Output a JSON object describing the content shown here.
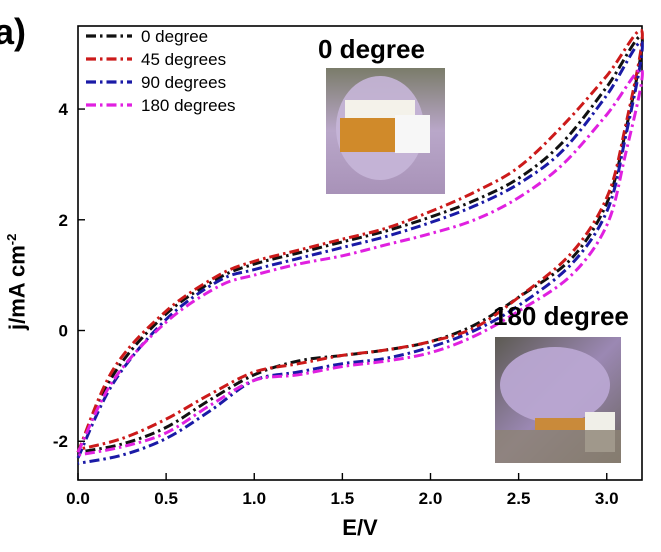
{
  "figure": {
    "panel_letter": "a)",
    "photo_top_caption": "0 degree",
    "photo_bottom_caption": "180 degree"
  },
  "chart_data": {
    "type": "line",
    "xlabel": "E/V",
    "ylabel_main": "j/mA cm",
    "ylabel_sup": "-2",
    "xlim": [
      0.0,
      3.2
    ],
    "ylim": [
      -2.7,
      5.5
    ],
    "xticks": [
      "0.0",
      "0.5",
      "1.0",
      "1.5",
      "2.0",
      "2.5",
      "3.0"
    ],
    "xtick_values": [
      0.0,
      0.5,
      1.0,
      1.5,
      2.0,
      2.5,
      3.0
    ],
    "yticks": [
      "-2",
      "0",
      "2",
      "4"
    ],
    "ytick_values": [
      -2,
      0,
      2,
      4
    ],
    "legend_position": "top-left",
    "series": [
      {
        "name": "0 degree",
        "color": "#111111",
        "upper": [
          [
            0.0,
            -2.2
          ],
          [
            0.2,
            -0.8
          ],
          [
            0.5,
            0.3
          ],
          [
            0.8,
            0.95
          ],
          [
            1.0,
            1.2
          ],
          [
            1.25,
            1.4
          ],
          [
            1.5,
            1.6
          ],
          [
            1.75,
            1.8
          ],
          [
            2.0,
            2.05
          ],
          [
            2.25,
            2.35
          ],
          [
            2.5,
            2.75
          ],
          [
            2.75,
            3.4
          ],
          [
            3.0,
            4.4
          ],
          [
            3.2,
            5.3
          ]
        ],
        "lower": [
          [
            3.2,
            5.2
          ],
          [
            3.1,
            3.5
          ],
          [
            3.0,
            2.3
          ],
          [
            2.8,
            1.3
          ],
          [
            2.5,
            0.6
          ],
          [
            2.25,
            0.1
          ],
          [
            2.0,
            -0.2
          ],
          [
            1.75,
            -0.35
          ],
          [
            1.5,
            -0.45
          ],
          [
            1.25,
            -0.55
          ],
          [
            1.0,
            -0.8
          ],
          [
            0.75,
            -1.25
          ],
          [
            0.5,
            -1.75
          ],
          [
            0.25,
            -2.05
          ],
          [
            0.0,
            -2.2
          ]
        ]
      },
      {
        "name": "45 degrees",
        "color": "#cc1a1a",
        "upper": [
          [
            0.0,
            -2.2
          ],
          [
            0.2,
            -0.7
          ],
          [
            0.5,
            0.35
          ],
          [
            0.8,
            1.0
          ],
          [
            1.0,
            1.25
          ],
          [
            1.25,
            1.45
          ],
          [
            1.5,
            1.65
          ],
          [
            1.75,
            1.85
          ],
          [
            2.0,
            2.15
          ],
          [
            2.25,
            2.5
          ],
          [
            2.5,
            2.95
          ],
          [
            2.75,
            3.7
          ],
          [
            3.0,
            4.6
          ],
          [
            3.2,
            5.4
          ]
        ],
        "lower": [
          [
            3.2,
            5.3
          ],
          [
            3.1,
            3.6
          ],
          [
            3.0,
            2.4
          ],
          [
            2.8,
            1.4
          ],
          [
            2.5,
            0.6
          ],
          [
            2.25,
            0.05
          ],
          [
            2.0,
            -0.2
          ],
          [
            1.75,
            -0.35
          ],
          [
            1.5,
            -0.45
          ],
          [
            1.25,
            -0.6
          ],
          [
            1.0,
            -0.75
          ],
          [
            0.75,
            -1.15
          ],
          [
            0.5,
            -1.6
          ],
          [
            0.25,
            -1.95
          ],
          [
            0.0,
            -2.15
          ]
        ]
      },
      {
        "name": "90 degrees",
        "color": "#1a1aa6",
        "upper": [
          [
            0.0,
            -2.3
          ],
          [
            0.2,
            -0.95
          ],
          [
            0.5,
            0.2
          ],
          [
            0.8,
            0.9
          ],
          [
            1.0,
            1.1
          ],
          [
            1.25,
            1.3
          ],
          [
            1.5,
            1.5
          ],
          [
            1.75,
            1.7
          ],
          [
            2.0,
            1.95
          ],
          [
            2.25,
            2.25
          ],
          [
            2.5,
            2.65
          ],
          [
            2.75,
            3.25
          ],
          [
            3.0,
            4.25
          ],
          [
            3.2,
            5.2
          ]
        ],
        "lower": [
          [
            3.2,
            5.1
          ],
          [
            3.1,
            3.4
          ],
          [
            3.0,
            2.15
          ],
          [
            2.8,
            1.2
          ],
          [
            2.5,
            0.45
          ],
          [
            2.25,
            0.0
          ],
          [
            2.0,
            -0.3
          ],
          [
            1.75,
            -0.5
          ],
          [
            1.5,
            -0.6
          ],
          [
            1.25,
            -0.75
          ],
          [
            1.0,
            -0.9
          ],
          [
            0.75,
            -1.45
          ],
          [
            0.5,
            -1.95
          ],
          [
            0.25,
            -2.25
          ],
          [
            0.0,
            -2.4
          ]
        ]
      },
      {
        "name": "180 degrees",
        "color": "#e020e0",
        "upper": [
          [
            0.0,
            -2.2
          ],
          [
            0.2,
            -0.9
          ],
          [
            0.5,
            0.15
          ],
          [
            0.8,
            0.8
          ],
          [
            1.0,
            1.0
          ],
          [
            1.25,
            1.2
          ],
          [
            1.5,
            1.35
          ],
          [
            1.75,
            1.55
          ],
          [
            2.0,
            1.75
          ],
          [
            2.25,
            2.0
          ],
          [
            2.5,
            2.4
          ],
          [
            2.75,
            3.0
          ],
          [
            3.0,
            3.9
          ],
          [
            3.2,
            4.7
          ]
        ],
        "lower": [
          [
            3.2,
            4.6
          ],
          [
            3.1,
            3.1
          ],
          [
            3.0,
            1.9
          ],
          [
            2.8,
            1.0
          ],
          [
            2.5,
            0.35
          ],
          [
            2.25,
            -0.1
          ],
          [
            2.0,
            -0.4
          ],
          [
            1.75,
            -0.55
          ],
          [
            1.5,
            -0.65
          ],
          [
            1.25,
            -0.8
          ],
          [
            1.0,
            -0.9
          ],
          [
            0.75,
            -1.35
          ],
          [
            0.5,
            -1.85
          ],
          [
            0.25,
            -2.1
          ],
          [
            0.0,
            -2.25
          ]
        ]
      }
    ]
  }
}
